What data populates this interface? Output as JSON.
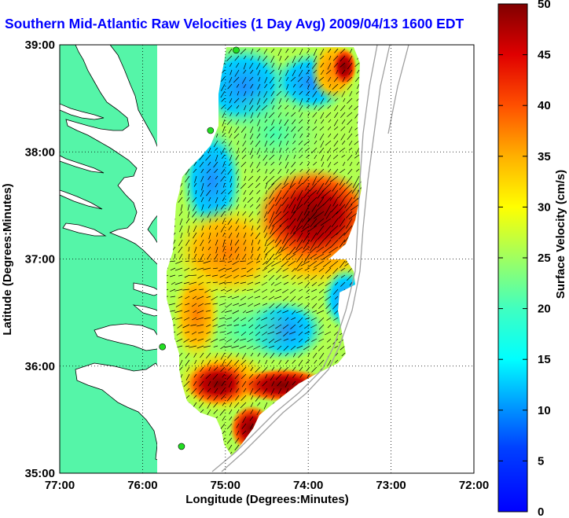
{
  "title": "Southern Mid-Atlantic Raw Velocities (1 Day Avg) 2009/04/13 1600 EDT",
  "chart_data": {
    "type": "heatmap",
    "title": "Southern Mid-Atlantic Raw Velocities (1 Day Avg) 2009/04/13 1600 EDT",
    "xlabel": "Longitude (Degrees:Minutes)",
    "ylabel": "Latitude (Degrees:Minutes)",
    "x_ticks": [
      "77:00",
      "76:00",
      "75:00",
      "74:00",
      "73:00",
      "72:00"
    ],
    "y_ticks": [
      "39:00",
      "38:00",
      "37:00",
      "36:00",
      "35:00"
    ],
    "xlim": [
      -77,
      -72
    ],
    "ylim": [
      35,
      39
    ],
    "grid": true,
    "colorbar": {
      "label": "Surface Velocity (cm/s)",
      "ticks": [
        "0",
        "5",
        "10",
        "15",
        "20",
        "25",
        "30",
        "35",
        "40",
        "45",
        "50"
      ],
      "range": [
        0,
        50
      ],
      "colormap": "jet"
    },
    "high_velocity_regions": [
      {
        "lon": -73.9,
        "lat": 37.3,
        "speed_cm_s": 48
      },
      {
        "lon": -74.9,
        "lat": 35.8,
        "speed_cm_s": 45
      },
      {
        "lon": -73.6,
        "lat": 38.8,
        "speed_cm_s": 42
      }
    ],
    "low_velocity_regions": [
      {
        "lon": -75.1,
        "lat": 38.5,
        "speed_cm_s": 10
      },
      {
        "lon": -74.0,
        "lat": 38.7,
        "speed_cm_s": 8
      },
      {
        "lon": -74.6,
        "lat": 36.4,
        "speed_cm_s": 12
      }
    ],
    "stations": [
      {
        "lon": -74.87,
        "lat": 38.95
      },
      {
        "lon": -75.18,
        "lat": 38.2
      },
      {
        "lon": -75.76,
        "lat": 36.18
      },
      {
        "lon": -75.53,
        "lat": 35.25
      }
    ]
  },
  "colors": {
    "land": "#55f5a8",
    "coast": "#000000",
    "title": "#0000ff",
    "grid": "#000000",
    "station": "#22dd22"
  }
}
